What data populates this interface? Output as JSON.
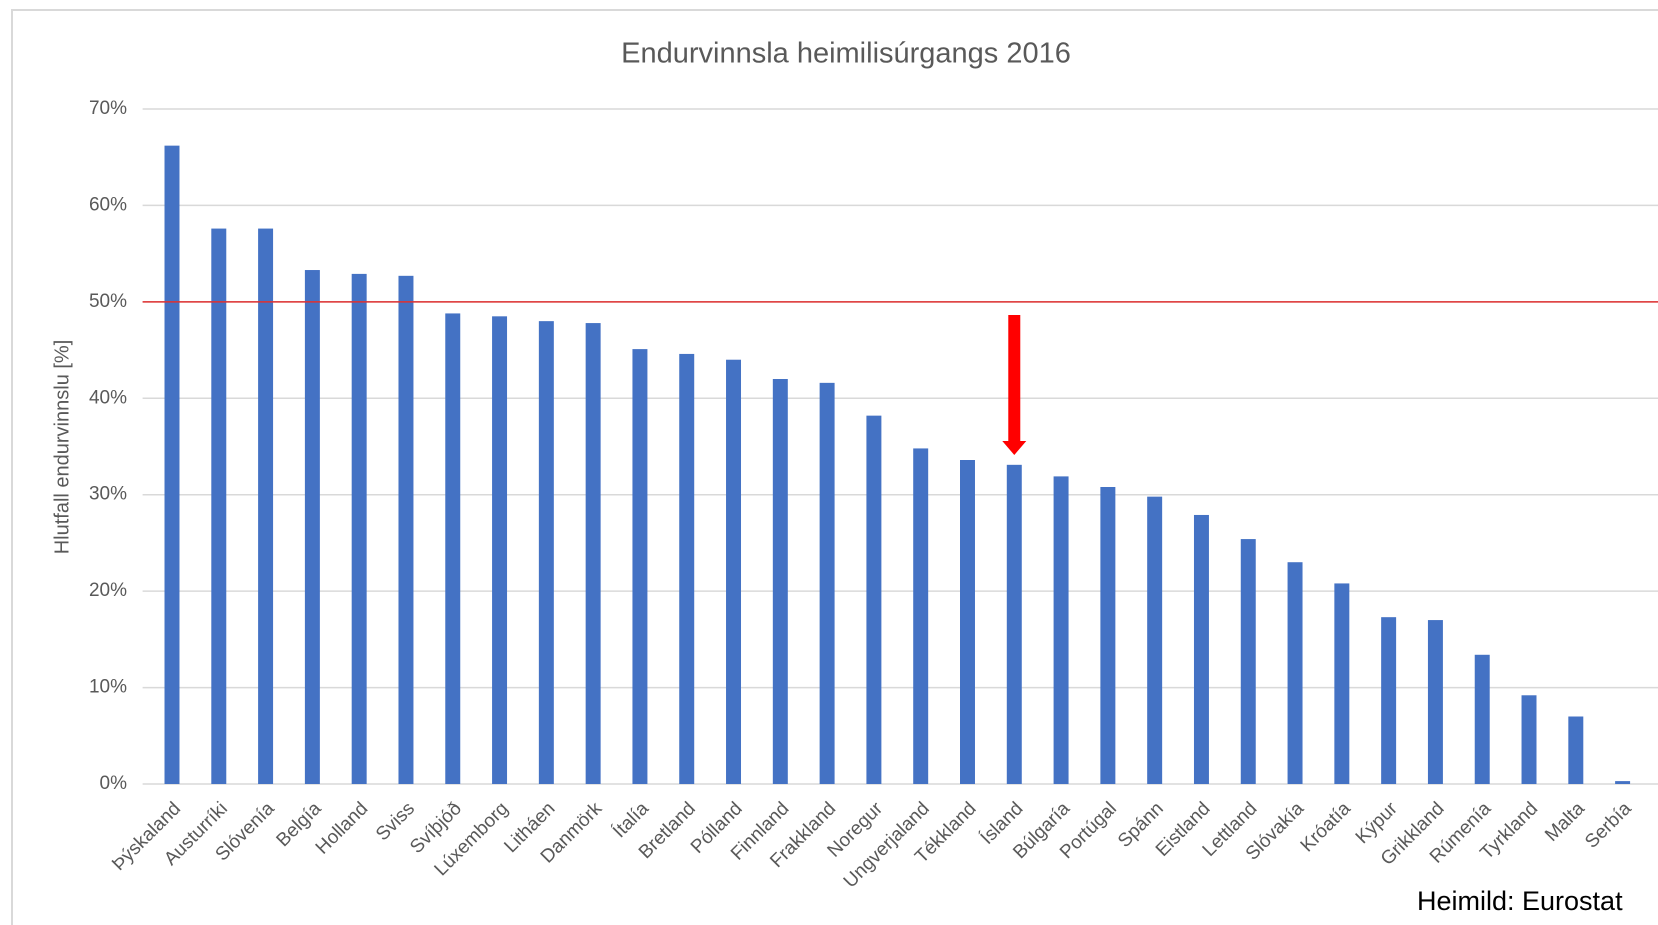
{
  "chart_data": {
    "type": "bar",
    "title": "Endurvinnsla heimilisúrgangs 2016",
    "y_label": "Hlutfall endurvinnslu [%]",
    "source": "Heimild: Eurostat",
    "categories": [
      "Þýskaland",
      "Austurríki",
      "Slóvenía",
      "Belgía",
      "Holland",
      "Sviss",
      "Svíþjóð",
      "Lúxemborg",
      "Litháen",
      "Danmörk",
      "Ítalía",
      "Bretland",
      "Pólland",
      "Finnland",
      "Frakkland",
      "Noregur",
      "Ungverjaland",
      "Tékkland",
      "Ísland",
      "Búlgaría",
      "Portúgal",
      "Spánn",
      "Eistland",
      "Lettland",
      "Slóvakía",
      "Króatía",
      "Kýpur",
      "Grikkland",
      "Rúmenía",
      "Tyrkland",
      "Malta",
      "Serbía"
    ],
    "values": [
      66.2,
      57.6,
      57.6,
      53.3,
      52.9,
      52.7,
      48.8,
      48.5,
      48.0,
      47.8,
      45.1,
      44.6,
      44.0,
      42.0,
      41.6,
      38.2,
      34.8,
      33.6,
      33.1,
      31.9,
      30.8,
      29.8,
      27.9,
      25.4,
      23.0,
      20.8,
      17.3,
      17.0,
      13.4,
      9.2,
      7.0,
      0.3
    ],
    "color": "#4472c4",
    "ylim": [
      0,
      70
    ],
    "yticks": [
      {
        "value": 0,
        "label": "0%"
      },
      {
        "value": 10,
        "label": "10%"
      },
      {
        "value": 20,
        "label": "20%"
      },
      {
        "value": 30,
        "label": "30%"
      },
      {
        "value": 40,
        "label": "40%"
      },
      {
        "value": 50,
        "label": "50%"
      },
      {
        "value": 60,
        "label": "60%"
      },
      {
        "value": 70,
        "label": "70%"
      }
    ],
    "grid": true,
    "reference_line": {
      "value": 50,
      "color": "#e03030"
    },
    "highlight": {
      "category": 18,
      "color": "#ff0000"
    }
  }
}
